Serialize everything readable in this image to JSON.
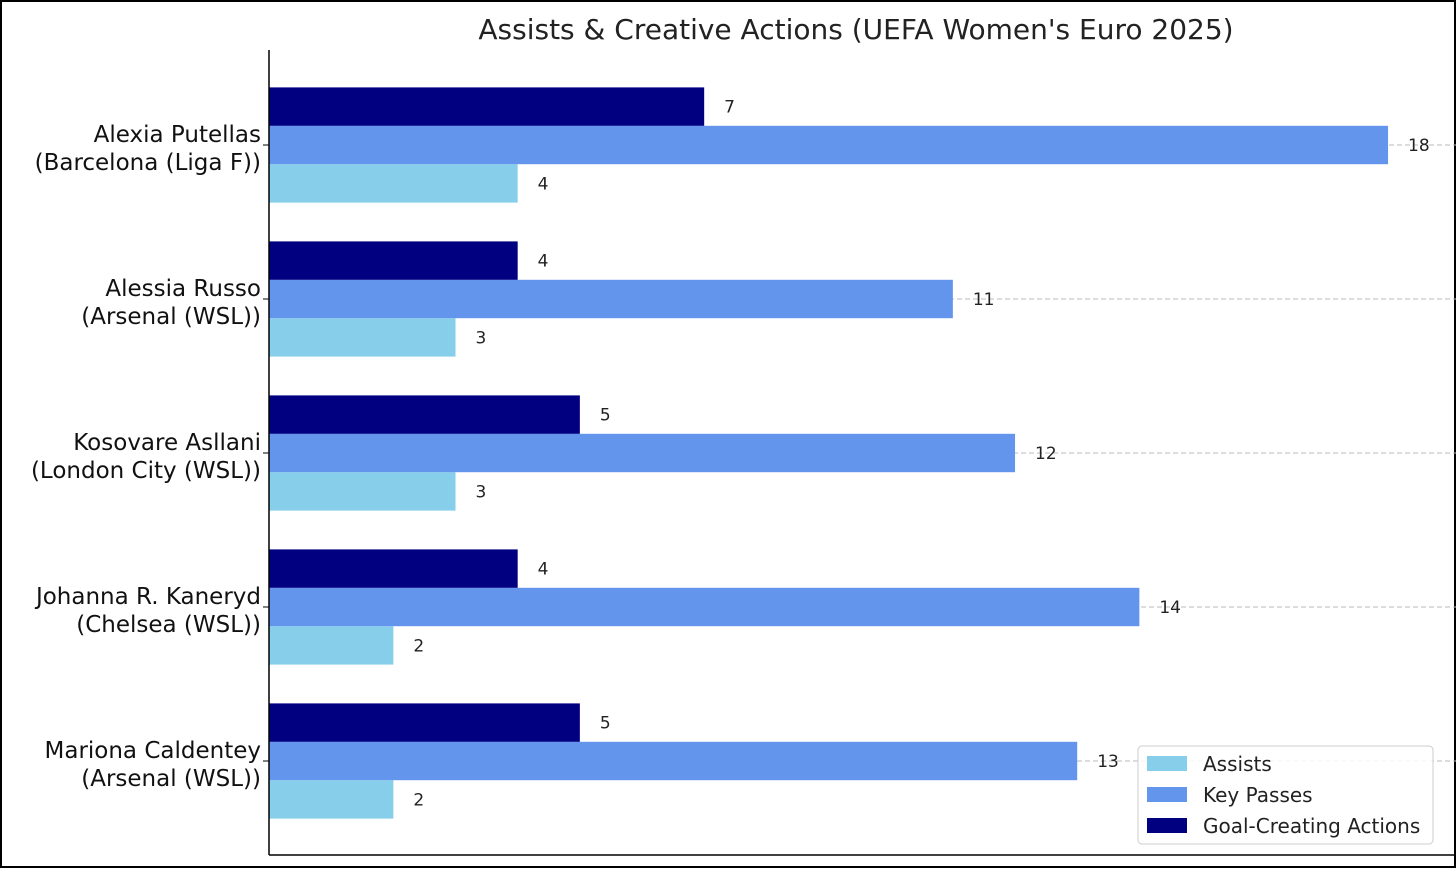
{
  "chart_data": {
    "type": "bar",
    "orientation": "horizontal",
    "title": "Assists & Creative Actions (UEFA Women's Euro 2025)",
    "xlabel": "",
    "ylabel": "",
    "xlim": [
      0,
      18.9
    ],
    "grid": "x-less; dashed horizontal lines at category ticks",
    "legend_position": "bottom-right",
    "categories": [
      [
        "Alexia Putellas",
        "(Barcelona (Liga F))"
      ],
      [
        "Alessia Russo",
        "(Arsenal (WSL))"
      ],
      [
        "Kosovare Asllani",
        "(London City (WSL))"
      ],
      [
        "Johanna R. Kaneryd",
        "(Chelsea (WSL))"
      ],
      [
        "Mariona Caldentey",
        "(Arsenal (WSL))"
      ]
    ],
    "series": [
      {
        "name": "Assists",
        "color": "#87CEEB",
        "values": [
          4,
          3,
          3,
          2,
          2
        ]
      },
      {
        "name": "Key Passes",
        "color": "#6495ED",
        "values": [
          18,
          11,
          12,
          14,
          13
        ]
      },
      {
        "name": "Goal-Creating Actions",
        "color": "#000080",
        "values": [
          7,
          4,
          5,
          4,
          5
        ]
      }
    ]
  }
}
